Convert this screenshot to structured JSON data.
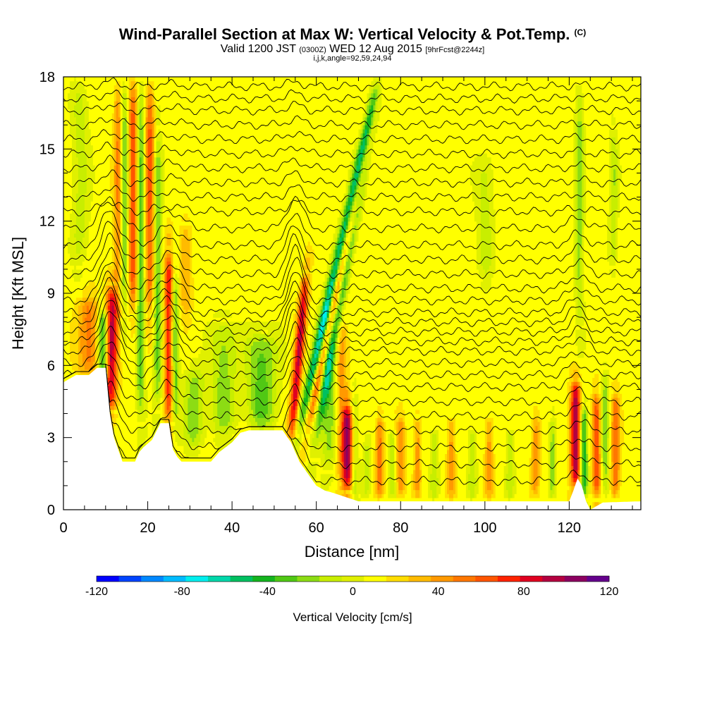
{
  "titles": {
    "main": "Wind-Parallel Section at Max W: Vertical Velocity & Pot.Temp.",
    "copyright": "(C)",
    "valid_prefix": "Valid 1200 JST",
    "valid_utc": "(0300Z)",
    "valid_date": "WED 12 Aug 2015",
    "forecast": "[9hrFcst@2244z]",
    "indices": "i,j,k,angle=92,59,24,94"
  },
  "chart_data": {
    "type": "heatmap",
    "xlabel": "Distance [nm]",
    "ylabel": "Height [Kft MSL]",
    "xlim": [
      0,
      137
    ],
    "ylim": [
      0,
      18
    ],
    "x_ticks": [
      0,
      20,
      40,
      60,
      80,
      100,
      120
    ],
    "y_ticks": [
      0,
      3,
      6,
      9,
      12,
      15,
      18
    ],
    "colorbar": {
      "label": "Vertical Velocity [cm/s]",
      "min": -120,
      "max": 120,
      "step": 10,
      "tick_values": [
        -120,
        -80,
        -40,
        0,
        40,
        80,
        120
      ],
      "colors": [
        "#0000ff",
        "#0044ff",
        "#0088ff",
        "#00bbff",
        "#00eeee",
        "#00d7aa",
        "#00c060",
        "#14b41e",
        "#50c814",
        "#8cdc14",
        "#c8ee00",
        "#e0f000",
        "#ffff00",
        "#ffdd00",
        "#ffbb00",
        "#ff9900",
        "#ff7700",
        "#ff5500",
        "#ff2200",
        "#e00020",
        "#b40040",
        "#8c0060",
        "#64008c"
      ]
    },
    "terrain_kft": [
      [
        0,
        5.3
      ],
      [
        3,
        5.6
      ],
      [
        6,
        5.6
      ],
      [
        8,
        5.9
      ],
      [
        10,
        5.9
      ],
      [
        11,
        4.0
      ],
      [
        12,
        3.0
      ],
      [
        13,
        2.5
      ],
      [
        14,
        2.0
      ],
      [
        17,
        2.0
      ],
      [
        18,
        2.4
      ],
      [
        19,
        2.6
      ],
      [
        21,
        2.9
      ],
      [
        23,
        3.6
      ],
      [
        25,
        3.6
      ],
      [
        26,
        2.5
      ],
      [
        27,
        2.2
      ],
      [
        28,
        2.0
      ],
      [
        32,
        2.0
      ],
      [
        35,
        2.0
      ],
      [
        37,
        2.4
      ],
      [
        40,
        2.8
      ],
      [
        42,
        3.2
      ],
      [
        44,
        3.3
      ],
      [
        52,
        3.3
      ],
      [
        54,
        2.8
      ],
      [
        56,
        2.0
      ],
      [
        58,
        1.5
      ],
      [
        60,
        1.0
      ],
      [
        62,
        0.8
      ],
      [
        64,
        0.7
      ],
      [
        70,
        0.35
      ],
      [
        120,
        0.35
      ],
      [
        121,
        0.8
      ],
      [
        122,
        1.3
      ],
      [
        123,
        1.0
      ],
      [
        124,
        0.35
      ],
      [
        125,
        0.0
      ],
      [
        128,
        0.3
      ],
      [
        137,
        0.35
      ]
    ],
    "vertical_velocity_features": [
      {
        "x": 11,
        "half_width": 1.6,
        "bottom_kft": 4.0,
        "top_kft": 9.5,
        "lean": 0.1,
        "w_cm_s": 80
      },
      {
        "x": 9.5,
        "half_width": 1.2,
        "bottom_kft": 5.0,
        "top_kft": 8.5,
        "lean": 0.0,
        "w_cm_s": -70
      },
      {
        "x": 6,
        "half_width": 2.5,
        "bottom_kft": 5.5,
        "top_kft": 9.0,
        "lean": 0.0,
        "w_cm_s": 40
      },
      {
        "x": 13,
        "half_width": 1.0,
        "bottom_kft": 9.0,
        "top_kft": 18,
        "lean": 0.0,
        "w_cm_s": 40
      },
      {
        "x": 14.5,
        "half_width": 1.1,
        "bottom_kft": 8.0,
        "top_kft": 18,
        "lean": 0.0,
        "w_cm_s": -40
      },
      {
        "x": 16.5,
        "half_width": 1.2,
        "bottom_kft": 8.0,
        "top_kft": 18,
        "lean": 0.0,
        "w_cm_s": 55
      },
      {
        "x": 18.3,
        "half_width": 1.0,
        "bottom_kft": 3.5,
        "top_kft": 18,
        "lean": 0.0,
        "w_cm_s": -45
      },
      {
        "x": 20.5,
        "half_width": 1.2,
        "bottom_kft": 8.0,
        "top_kft": 18,
        "lean": 0.0,
        "w_cm_s": 50
      },
      {
        "x": 22.3,
        "half_width": 1.0,
        "bottom_kft": 4.0,
        "top_kft": 16,
        "lean": 0.0,
        "w_cm_s": -40
      },
      {
        "x": 25,
        "half_width": 1.0,
        "bottom_kft": 3.5,
        "top_kft": 11,
        "lean": 0.0,
        "w_cm_s": 65
      },
      {
        "x": 26.5,
        "half_width": 0.9,
        "bottom_kft": 3.5,
        "top_kft": 10,
        "lean": 0.0,
        "w_cm_s": -40
      },
      {
        "x": 29,
        "half_width": 1.5,
        "bottom_kft": 8.0,
        "top_kft": 12,
        "lean": 0.0,
        "w_cm_s": 25
      },
      {
        "x": 31,
        "half_width": 2.5,
        "bottom_kft": 2.5,
        "top_kft": 6.0,
        "lean": 0.0,
        "w_cm_s": -30
      },
      {
        "x": 38,
        "half_width": 3.0,
        "bottom_kft": 3.0,
        "top_kft": 8.0,
        "lean": 0.0,
        "w_cm_s": -30
      },
      {
        "x": 47,
        "half_width": 3.5,
        "bottom_kft": 3.3,
        "top_kft": 7.5,
        "lean": 0.0,
        "w_cm_s": -40
      },
      {
        "x": 54,
        "half_width": 1.1,
        "bottom_kft": 2.8,
        "top_kft": 10,
        "lean": 0.5,
        "w_cm_s": 75
      },
      {
        "x": 55.5,
        "half_width": 1.3,
        "bottom_kft": 3.0,
        "top_kft": 18,
        "lean": 1.3,
        "w_cm_s": -65
      },
      {
        "x": 57.5,
        "half_width": 1.0,
        "bottom_kft": 3.0,
        "top_kft": 18,
        "lean": 1.2,
        "w_cm_s": 60
      },
      {
        "x": 59,
        "half_width": 1.2,
        "bottom_kft": 2.0,
        "top_kft": 18,
        "lean": 1.0,
        "w_cm_s": -45
      },
      {
        "x": 63,
        "half_width": 2.0,
        "bottom_kft": 1.5,
        "top_kft": 9.0,
        "lean": 0.0,
        "w_cm_s": -30
      },
      {
        "x": 66,
        "half_width": 1.5,
        "bottom_kft": 1.0,
        "top_kft": 8.0,
        "lean": 0.0,
        "w_cm_s": 30
      },
      {
        "x": 67.5,
        "half_width": 1.3,
        "bottom_kft": 0.7,
        "top_kft": 4.5,
        "lean": 0.0,
        "w_cm_s": 80
      },
      {
        "x": 69,
        "half_width": 1.0,
        "bottom_kft": 0.5,
        "top_kft": 5.0,
        "lean": 0.0,
        "w_cm_s": -30
      },
      {
        "x": 72,
        "half_width": 1.0,
        "bottom_kft": 0.4,
        "top_kft": 3.0,
        "lean": 0.0,
        "w_cm_s": -20
      },
      {
        "x": 75,
        "half_width": 1.0,
        "bottom_kft": 0.4,
        "top_kft": 4.0,
        "lean": 0.0,
        "w_cm_s": 40
      },
      {
        "x": 80,
        "half_width": 1.0,
        "bottom_kft": 0.4,
        "top_kft": 4.0,
        "lean": 0.0,
        "w_cm_s": 35
      },
      {
        "x": 78,
        "half_width": 0.8,
        "bottom_kft": 0.4,
        "top_kft": 3.5,
        "lean": 0.0,
        "w_cm_s": -25
      },
      {
        "x": 84,
        "half_width": 0.9,
        "bottom_kft": 0.4,
        "top_kft": 4.0,
        "lean": 0.0,
        "w_cm_s": 30
      },
      {
        "x": 88,
        "half_width": 1.0,
        "bottom_kft": 0.4,
        "top_kft": 3.5,
        "lean": 0.0,
        "w_cm_s": -25
      },
      {
        "x": 92,
        "half_width": 1.0,
        "bottom_kft": 0.4,
        "top_kft": 4.0,
        "lean": 0.0,
        "w_cm_s": 30
      },
      {
        "x": 97,
        "half_width": 1.0,
        "bottom_kft": 0.4,
        "top_kft": 3.5,
        "lean": 0.0,
        "w_cm_s": -25
      },
      {
        "x": 101,
        "half_width": 1.0,
        "bottom_kft": 0.4,
        "top_kft": 4.0,
        "lean": 0.0,
        "w_cm_s": 30
      },
      {
        "x": 106,
        "half_width": 1.0,
        "bottom_kft": 0.4,
        "top_kft": 3.5,
        "lean": 0.0,
        "w_cm_s": -25
      },
      {
        "x": 112,
        "half_width": 1.0,
        "bottom_kft": 0.4,
        "top_kft": 4.0,
        "lean": 0.0,
        "w_cm_s": 30
      },
      {
        "x": 116,
        "half_width": 0.8,
        "bottom_kft": 0.4,
        "top_kft": 4.0,
        "lean": 0.0,
        "w_cm_s": -30
      },
      {
        "x": 100,
        "half_width": 2.0,
        "bottom_kft": 9.5,
        "top_kft": 15,
        "lean": 0.0,
        "w_cm_s": -20
      },
      {
        "x": 121.5,
        "half_width": 1.2,
        "bottom_kft": 0.8,
        "top_kft": 5.5,
        "lean": 0.0,
        "w_cm_s": 85
      },
      {
        "x": 123.5,
        "half_width": 0.9,
        "bottom_kft": 0.4,
        "top_kft": 4.5,
        "lean": 0.0,
        "w_cm_s": -55
      },
      {
        "x": 126.5,
        "half_width": 1.0,
        "bottom_kft": 0.4,
        "top_kft": 5.0,
        "lean": 0.0,
        "w_cm_s": 55
      },
      {
        "x": 128.5,
        "half_width": 0.9,
        "bottom_kft": 0.4,
        "top_kft": 6.0,
        "lean": 0.0,
        "w_cm_s": -30
      },
      {
        "x": 131,
        "half_width": 1.0,
        "bottom_kft": 0.4,
        "top_kft": 5.0,
        "lean": 0.0,
        "w_cm_s": 45
      },
      {
        "x": 122.5,
        "half_width": 1.0,
        "bottom_kft": 7.5,
        "top_kft": 18,
        "lean": 0.0,
        "w_cm_s": -30
      },
      {
        "x": 130.5,
        "half_width": 1.0,
        "bottom_kft": 10.0,
        "top_kft": 16,
        "lean": 0.0,
        "w_cm_s": -25
      },
      {
        "x": 4,
        "half_width": 2.0,
        "bottom_kft": 10.0,
        "top_kft": 18,
        "lean": 0.0,
        "w_cm_s": -20
      }
    ],
    "potential_temperature_isentropes": {
      "levels_kft": [
        1.2,
        1.9,
        2.6,
        3.3,
        3.9,
        4.5,
        5.1,
        5.6,
        6.1,
        6.6,
        7.0,
        7.4,
        7.8,
        8.2,
        8.7,
        9.2,
        9.8,
        10.4,
        11.0,
        11.7,
        12.4,
        13.0,
        13.6,
        14.2,
        14.8,
        15.4,
        16.0,
        16.6,
        17.1,
        17.6
      ],
      "disturbances": [
        {
          "x": 11,
          "width": 3.0,
          "amplitude_kft": 1.8
        },
        {
          "x": 25,
          "width": 4.0,
          "amplitude_kft": 1.0
        },
        {
          "x": 55,
          "width": 2.5,
          "amplitude_kft": 1.8
        },
        {
          "x": 122,
          "width": 3.0,
          "amplitude_kft": 0.6
        }
      ]
    }
  }
}
